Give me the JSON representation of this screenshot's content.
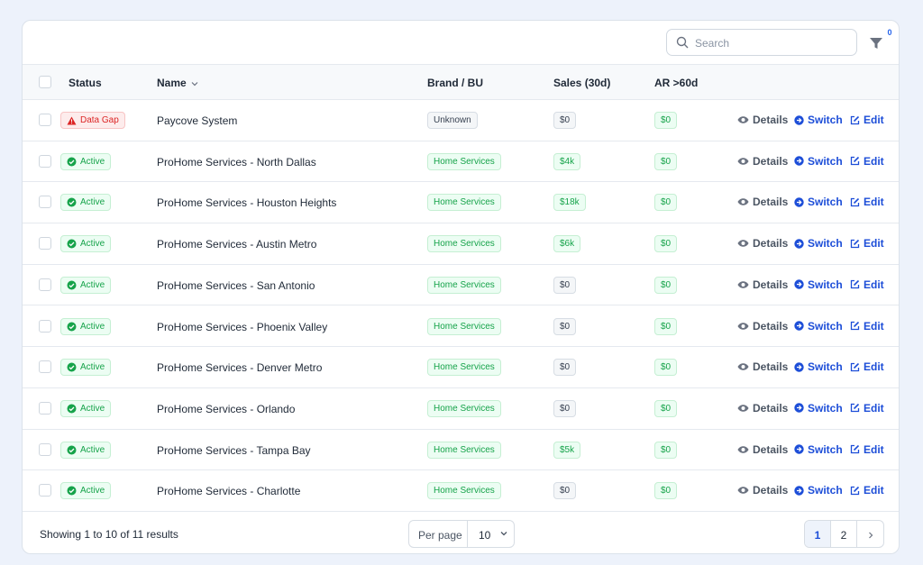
{
  "toolbar": {
    "search_placeholder": "Search",
    "filter_count": "0"
  },
  "table": {
    "headers": [
      "Status",
      "Name",
      "Brand / BU",
      "Sales (30d)",
      "AR >60d"
    ],
    "row_actions": [
      "Details",
      "Switch",
      "Edit"
    ],
    "rows": [
      {
        "status": "Data Gap",
        "status_tone": "red",
        "name": "Paycove System",
        "brand": "Unknown",
        "brand_tone": "gray",
        "sales": "$0",
        "sales_tone": "gray",
        "ar": "$0",
        "ar_tone": "green"
      },
      {
        "status": "Active",
        "status_tone": "green",
        "name": "ProHome Services - North Dallas",
        "brand": "Home Services",
        "brand_tone": "green",
        "sales": "$4k",
        "sales_tone": "green",
        "ar": "$0",
        "ar_tone": "green"
      },
      {
        "status": "Active",
        "status_tone": "green",
        "name": "ProHome Services - Houston Heights",
        "brand": "Home Services",
        "brand_tone": "green",
        "sales": "$18k",
        "sales_tone": "green",
        "ar": "$0",
        "ar_tone": "green"
      },
      {
        "status": "Active",
        "status_tone": "green",
        "name": "ProHome Services - Austin Metro",
        "brand": "Home Services",
        "brand_tone": "green",
        "sales": "$6k",
        "sales_tone": "green",
        "ar": "$0",
        "ar_tone": "green"
      },
      {
        "status": "Active",
        "status_tone": "green",
        "name": "ProHome Services - San Antonio",
        "brand": "Home Services",
        "brand_tone": "green",
        "sales": "$0",
        "sales_tone": "gray",
        "ar": "$0",
        "ar_tone": "green"
      },
      {
        "status": "Active",
        "status_tone": "green",
        "name": "ProHome Services - Phoenix Valley",
        "brand": "Home Services",
        "brand_tone": "green",
        "sales": "$0",
        "sales_tone": "gray",
        "ar": "$0",
        "ar_tone": "green"
      },
      {
        "status": "Active",
        "status_tone": "green",
        "name": "ProHome Services - Denver Metro",
        "brand": "Home Services",
        "brand_tone": "green",
        "sales": "$0",
        "sales_tone": "gray",
        "ar": "$0",
        "ar_tone": "green"
      },
      {
        "status": "Active",
        "status_tone": "green",
        "name": "ProHome Services - Orlando",
        "brand": "Home Services",
        "brand_tone": "green",
        "sales": "$0",
        "sales_tone": "gray",
        "ar": "$0",
        "ar_tone": "green"
      },
      {
        "status": "Active",
        "status_tone": "green",
        "name": "ProHome Services - Tampa Bay",
        "brand": "Home Services",
        "brand_tone": "green",
        "sales": "$5k",
        "sales_tone": "green",
        "ar": "$0",
        "ar_tone": "green"
      },
      {
        "status": "Active",
        "status_tone": "green",
        "name": "ProHome Services - Charlotte",
        "brand": "Home Services",
        "brand_tone": "green",
        "sales": "$0",
        "sales_tone": "gray",
        "ar": "$0",
        "ar_tone": "green"
      }
    ]
  },
  "footer": {
    "summary": "Showing 1 to 10 of 11 results",
    "per_page_label": "Per page",
    "per_page_value": "10",
    "pages": [
      "1",
      "2"
    ]
  }
}
